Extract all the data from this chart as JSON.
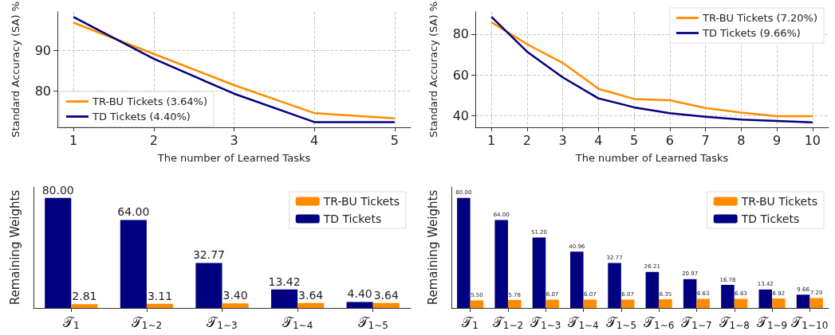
{
  "chart_data": [
    {
      "type": "line",
      "xlabel": "The number of Learned Tasks",
      "ylabel": "Standard Accuracy (SA) %",
      "x": [
        1,
        2,
        3,
        4,
        5
      ],
      "xlim": [
        0.8,
        5.2
      ],
      "xticks": [
        1,
        2,
        3,
        4,
        5
      ],
      "ylim": [
        71.1,
        99.6
      ],
      "yticks": [
        80,
        90
      ],
      "grid": true,
      "legend": "bottom left",
      "series": [
        {
          "name": "TR-BU Tickets (3.64%)",
          "color": "#ff8c00",
          "values": [
            96.9,
            89.2,
            81.5,
            74.6,
            73.3
          ]
        },
        {
          "name": "TD Tickets (4.40%)",
          "color": "#000080",
          "values": [
            98.3,
            88.0,
            79.4,
            72.4,
            72.4
          ]
        }
      ]
    },
    {
      "type": "line",
      "xlabel": "The number of Learned Tasks",
      "ylabel": "Standard Accuracy (SA) %",
      "x": [
        1,
        2,
        3,
        4,
        5,
        6,
        7,
        8,
        9,
        10
      ],
      "xlim": [
        0.55,
        10.45
      ],
      "xticks": [
        1,
        2,
        3,
        4,
        5,
        6,
        7,
        8,
        9,
        10
      ],
      "ylim": [
        34.3,
        91
      ],
      "yticks": [
        40,
        60,
        80
      ],
      "grid": true,
      "legend": "top right",
      "series": [
        {
          "name": "TR-BU Tickets (7.20%)",
          "color": "#ff8c00",
          "values": [
            85.9,
            75.1,
            65.9,
            53.2,
            48.2,
            47.6,
            43.8,
            41.5,
            39.8,
            39.8
          ]
        },
        {
          "name": "TD Tickets (9.66%)",
          "color": "#000080",
          "values": [
            88.5,
            71.4,
            58.8,
            48.5,
            44.1,
            41.2,
            39.5,
            38.1,
            37.4,
            36.7
          ]
        }
      ]
    },
    {
      "type": "bar",
      "ylabel": "Remaining Weights",
      "categories": [
        "𝒯$_{1}$",
        "𝒯$_{1∼2}$",
        "𝒯$_{1∼3}$",
        "𝒯$_{1∼4}$",
        "𝒯$_{1∼5}$"
      ],
      "tick_labels": "x",
      "legend": "top right",
      "series": [
        {
          "name": "TD Tickets",
          "color": "#000080",
          "values": [
            80.0,
            64.0,
            32.77,
            13.42,
            4.4
          ],
          "value_labels": [
            "80.00",
            "64.00",
            "32.77",
            "13.42",
            "4.40"
          ]
        },
        {
          "name": "TR-BU Tickets",
          "color": "#ff8c00",
          "values": [
            2.81,
            3.11,
            3.4,
            3.64,
            3.64
          ],
          "value_labels": [
            "2.81",
            "3.11",
            "3.40",
            "3.64",
            "3.64"
          ]
        }
      ]
    },
    {
      "type": "bar",
      "ylabel": "Remaining Weights",
      "categories": [
        "𝒯$_{1}$",
        "𝒯$_{1∼2}$",
        "𝒯$_{1∼3}$",
        "𝒯$_{1∼4}$",
        "𝒯$_{1∼5}$",
        "𝒯$_{1∼6}$",
        "𝒯$_{1∼7}$",
        "𝒯$_{1∼8}$",
        "𝒯$_{1∼9}$",
        "𝒯$_{1∼10}$"
      ],
      "tick_labels": "x",
      "legend": "top right",
      "series": [
        {
          "name": "TD Tickets",
          "color": "#000080",
          "values": [
            80.0,
            64.0,
            51.2,
            40.96,
            32.77,
            26.21,
            20.97,
            16.78,
            13.42,
            9.66
          ],
          "value_labels": [
            "80.00",
            "64.00",
            "51.20",
            "40.96",
            "32.77",
            "26.21",
            "20.97",
            "16.78",
            "13.42",
            "9.66"
          ]
        },
        {
          "name": "TR-BU Tickets",
          "color": "#ff8c00",
          "values": [
            5.5,
            5.78,
            6.07,
            6.07,
            6.07,
            6.35,
            6.63,
            6.63,
            6.92,
            7.2
          ],
          "value_labels": [
            "5.50",
            "5.78",
            "6.07",
            "6.07",
            "6.07",
            "6.35",
            "6.63",
            "6.63",
            "6.92",
            "7.20"
          ]
        }
      ]
    }
  ]
}
